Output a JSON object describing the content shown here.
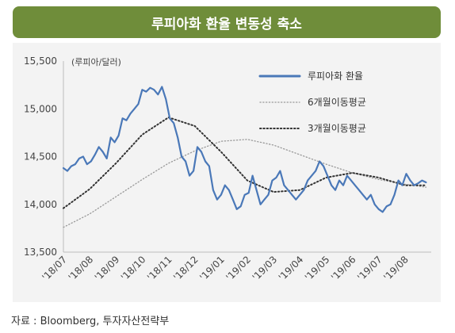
{
  "header": {
    "title": "루피아화 환율 변동성 축소"
  },
  "source": "자료 : Bloomberg, 투자자산전략부",
  "chart_data": {
    "type": "line",
    "title": "루피아화 환율 변동성 축소",
    "ylabel": "(루피아/달러)",
    "xlabel": "",
    "ylim": [
      13500,
      15500
    ],
    "yticks": [
      13500,
      14000,
      14500,
      15000,
      15500
    ],
    "ytick_labels": [
      "13,500",
      "14,000",
      "14,500",
      "15,000",
      "15,500"
    ],
    "xlim": [
      0,
      14
    ],
    "xtick_labels": [
      "'18/07",
      "'18/08",
      "'18/09",
      "'18/10",
      "'18/11",
      "'18/12",
      "'19/01",
      "'19/02",
      "'19/03",
      "'19/04",
      "'19/05",
      "'19/06",
      "'19/07",
      "'19/08"
    ],
    "grid": false,
    "legend_position": "top-right",
    "series": [
      {
        "name": "루피아화 환율",
        "style": "solid",
        "color": "#4a78b8",
        "x": [
          0,
          0.15,
          0.3,
          0.45,
          0.6,
          0.75,
          0.9,
          1.05,
          1.2,
          1.35,
          1.5,
          1.65,
          1.8,
          1.95,
          2.1,
          2.25,
          2.4,
          2.55,
          2.7,
          2.85,
          3.0,
          3.15,
          3.3,
          3.45,
          3.6,
          3.75,
          3.9,
          4.05,
          4.2,
          4.35,
          4.5,
          4.65,
          4.8,
          4.95,
          5.1,
          5.25,
          5.4,
          5.55,
          5.7,
          5.85,
          6.0,
          6.15,
          6.3,
          6.45,
          6.6,
          6.75,
          6.9,
          7.05,
          7.2,
          7.35,
          7.5,
          7.65,
          7.8,
          7.95,
          8.1,
          8.25,
          8.4,
          8.55,
          8.7,
          8.85,
          9.0,
          9.15,
          9.3,
          9.45,
          9.6,
          9.75,
          9.9,
          10.05,
          10.2,
          10.35,
          10.5,
          10.65,
          10.8,
          10.95,
          11.1,
          11.25,
          11.4,
          11.55,
          11.7,
          11.85,
          12.0,
          12.15,
          12.3,
          12.45,
          12.6,
          12.75,
          12.9,
          13.05,
          13.2,
          13.35,
          13.5,
          13.65,
          13.8
        ],
        "values": [
          14380,
          14350,
          14400,
          14420,
          14480,
          14500,
          14420,
          14450,
          14520,
          14600,
          14550,
          14480,
          14700,
          14650,
          14720,
          14900,
          14880,
          14950,
          15000,
          15050,
          15200,
          15180,
          15220,
          15200,
          15150,
          15230,
          15100,
          14900,
          14850,
          14700,
          14500,
          14450,
          14300,
          14350,
          14600,
          14550,
          14450,
          14400,
          14150,
          14050,
          14100,
          14200,
          14150,
          14050,
          13950,
          13980,
          14100,
          14120,
          14300,
          14150,
          14000,
          14050,
          14100,
          14250,
          14280,
          14350,
          14200,
          14150,
          14100,
          14050,
          14100,
          14150,
          14250,
          14300,
          14350,
          14450,
          14400,
          14300,
          14200,
          14150,
          14250,
          14200,
          14300,
          14250,
          14200,
          14150,
          14100,
          14050,
          14100,
          14000,
          13950,
          13920,
          13980,
          14000,
          14100,
          14250,
          14200,
          14320,
          14250,
          14200,
          14220,
          14250,
          14230
        ]
      },
      {
        "name": "6개월이동평균",
        "style": "dotted",
        "color": "#999999",
        "x": [
          0,
          1,
          2,
          3,
          4,
          5,
          6,
          7,
          8,
          9,
          10,
          11,
          12,
          13,
          13.8
        ],
        "values": [
          13760,
          13900,
          14080,
          14260,
          14430,
          14560,
          14660,
          14680,
          14620,
          14520,
          14420,
          14330,
          14260,
          14210,
          14180
        ]
      },
      {
        "name": "3개월이동평균",
        "style": "dotted",
        "color": "#333333",
        "x": [
          0,
          1,
          2,
          3,
          4,
          5,
          6,
          7,
          8,
          9,
          10,
          11,
          12,
          13,
          13.8
        ],
        "values": [
          13960,
          14160,
          14430,
          14730,
          14910,
          14820,
          14550,
          14250,
          14130,
          14150,
          14280,
          14330,
          14280,
          14200,
          14200
        ]
      }
    ]
  }
}
